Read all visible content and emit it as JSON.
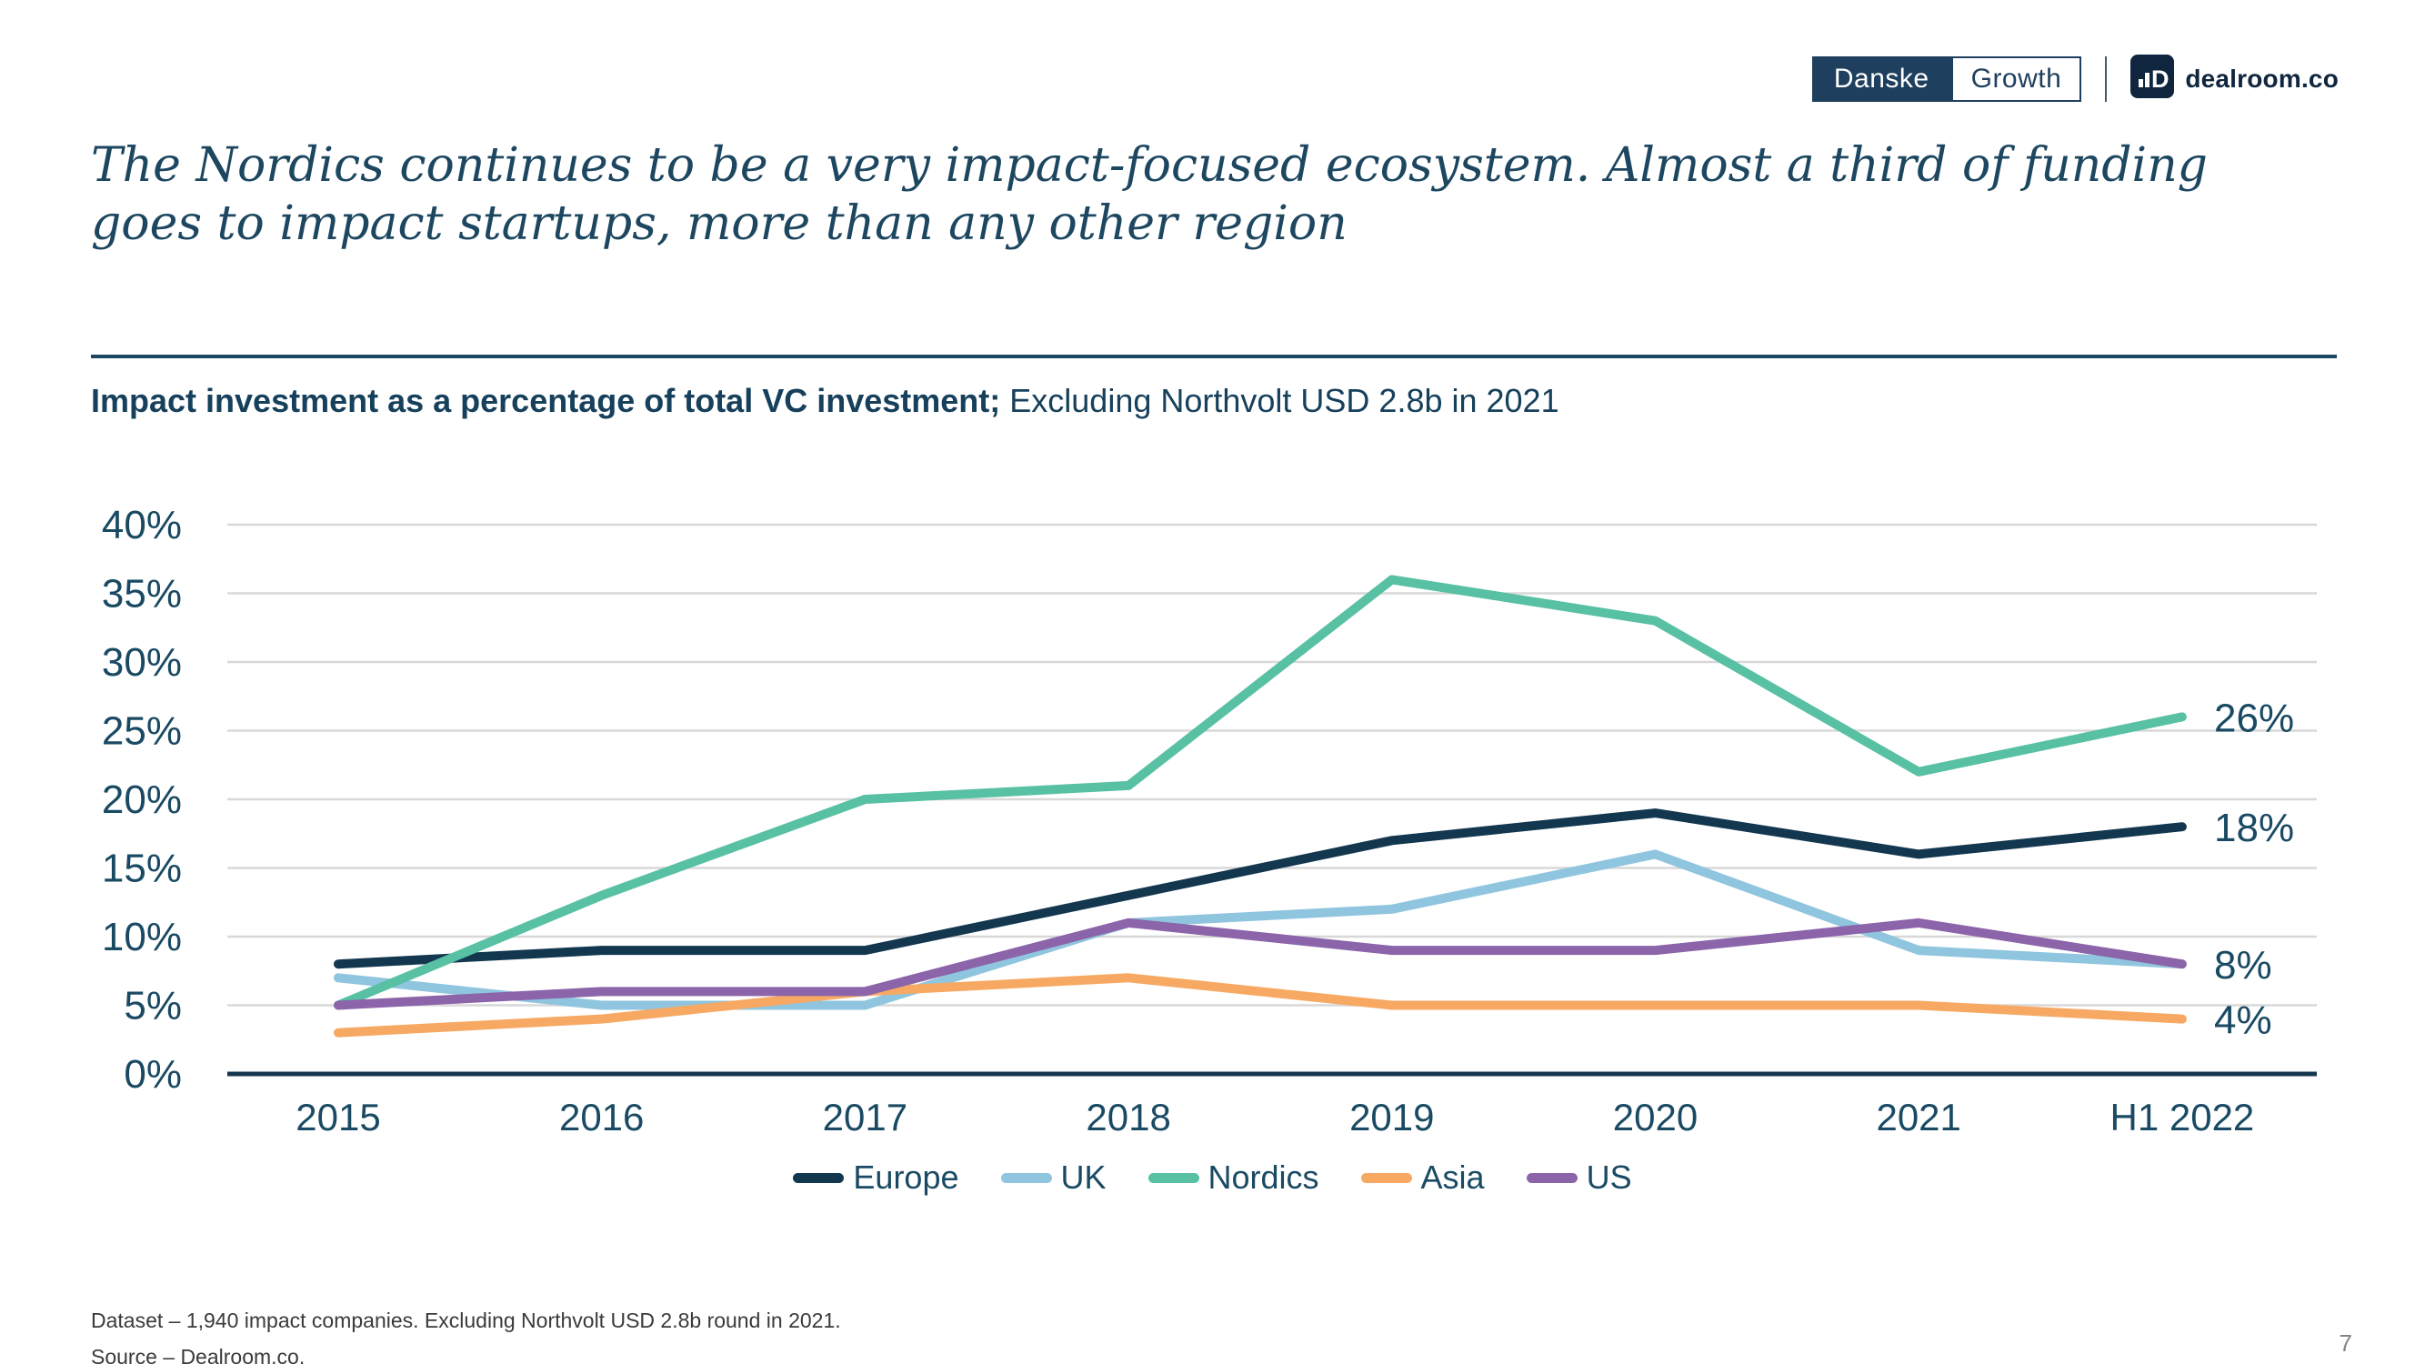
{
  "header": {
    "danske_label": "Danske",
    "growth_label": "Growth",
    "dealroom_label": "dealroom.co"
  },
  "title_line1": "The Nordics continues to be a very impact-focused ecosystem. Almost a third of funding",
  "title_line2": "goes to impact startups, more than any other region",
  "subtitle_bold": "Impact investment as a percentage of total VC investment;",
  "subtitle_regular": " Excluding Northvolt USD 2.8b in 2021",
  "chart_data": {
    "type": "line",
    "title": "Impact investment as a percentage of total VC investment",
    "categories": [
      "2015",
      "2016",
      "2017",
      "2018",
      "2019",
      "2020",
      "2021",
      "H1 2022"
    ],
    "series": [
      {
        "name": "Europe",
        "color": "#12374F",
        "values": [
          8,
          9,
          9,
          13,
          17,
          19,
          16,
          18
        ],
        "end_label": "18%"
      },
      {
        "name": "UK",
        "color": "#8FC5DE",
        "values": [
          7,
          5,
          5,
          11,
          12,
          16,
          9,
          8
        ],
        "end_label": null
      },
      {
        "name": "Nordics",
        "color": "#58C0A3",
        "values": [
          5,
          13,
          20,
          21,
          36,
          33,
          22,
          26
        ],
        "end_label": "26%"
      },
      {
        "name": "Asia",
        "color": "#F7A963",
        "values": [
          3,
          4,
          6,
          7,
          5,
          5,
          5,
          4
        ],
        "end_label": "4%"
      },
      {
        "name": "US",
        "color": "#8B64A9",
        "values": [
          5,
          6,
          6,
          11,
          9,
          9,
          11,
          8
        ],
        "end_label": "8%"
      }
    ],
    "ylim": [
      0,
      40
    ],
    "ytick_step": 5,
    "ytick_suffix": "%",
    "grid": true,
    "legend_position": "bottom",
    "label_color": "#1A4A63",
    "grid_color": "#D8D8D8",
    "axis_color": "#14374F"
  },
  "footer": {
    "line1": "Dataset – 1,940 impact companies. Excluding Northvolt USD 2.8b round in 2021.",
    "line2": "Source – Dealroom.co."
  },
  "page_number": "7"
}
